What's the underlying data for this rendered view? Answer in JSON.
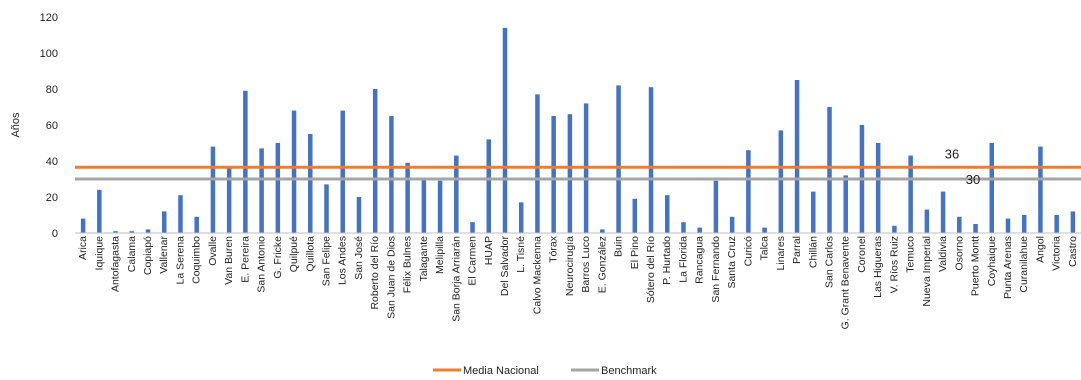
{
  "chart_data": {
    "type": "bar",
    "ylabel": "Años",
    "ylim": [
      0,
      120
    ],
    "yticks": [
      0,
      20,
      40,
      60,
      80,
      100,
      120
    ],
    "grid": false,
    "legend_position": "bottom",
    "categories": [
      "Arica",
      "Iquique",
      "Antofagasta",
      "Calama",
      "Copiapó",
      "Vallenar",
      "La Serena",
      "Coquimbo",
      "Ovalle",
      "Van Buren",
      "E. Pereira",
      "San Antonio",
      "G. Fricke",
      "Quilpué",
      "Quillota",
      "San Felipe",
      "Los Andes",
      "San José",
      "Roberto del Río",
      "San Juan de Dios",
      "Félix Bulnes",
      "Talagante",
      "Melipilla",
      "San Borja Arriarán",
      "El Carmen",
      "HUAP",
      "Del Salvador",
      "L. Tisné",
      "Calvo Mackenna",
      "Tórax",
      "Neurocirugía",
      "Barros Luco",
      "E. González",
      "Buin",
      "El Pino",
      "Sótero del Río",
      "P. Hurtado",
      "La Florida",
      "Rancagua",
      "San Fernando",
      "Santa Cruz",
      "Curicó",
      "Talca",
      "Linares",
      "Parral",
      "Chillán",
      "San Carlos",
      "G. Grant Benavente",
      "Coronel",
      "Las Higueras",
      "V. Ríos Ruiz",
      "Temuco",
      "Nueva Imperial",
      "Valdivia",
      "Osorno",
      "Puerto Montt",
      "Coyhaique",
      "Punta Arenas",
      "Curanilahue",
      "Angol",
      "Victoria",
      "Castro"
    ],
    "series": [
      {
        "color": "#4472c4",
        "values": [
          8,
          24,
          1,
          1,
          2,
          12,
          21,
          9,
          48,
          36,
          79,
          47,
          50,
          68,
          55,
          27,
          68,
          20,
          80,
          65,
          39,
          30,
          29,
          43,
          6,
          52,
          114,
          17,
          77,
          65,
          66,
          72,
          2,
          82,
          19,
          81,
          21,
          6,
          3,
          29,
          9,
          46,
          3,
          57,
          85,
          23,
          70,
          32,
          60,
          50,
          4,
          43,
          13,
          23,
          9,
          5,
          50,
          8,
          10,
          48,
          10,
          12
        ]
      }
    ],
    "reference_lines": [
      {
        "name": "Media Nacional",
        "value": 36.5,
        "label": "36",
        "color": "#ed7d31"
      },
      {
        "name": "Benchmark",
        "value": 30,
        "label": "30",
        "color": "#a5a5a5"
      }
    ]
  }
}
